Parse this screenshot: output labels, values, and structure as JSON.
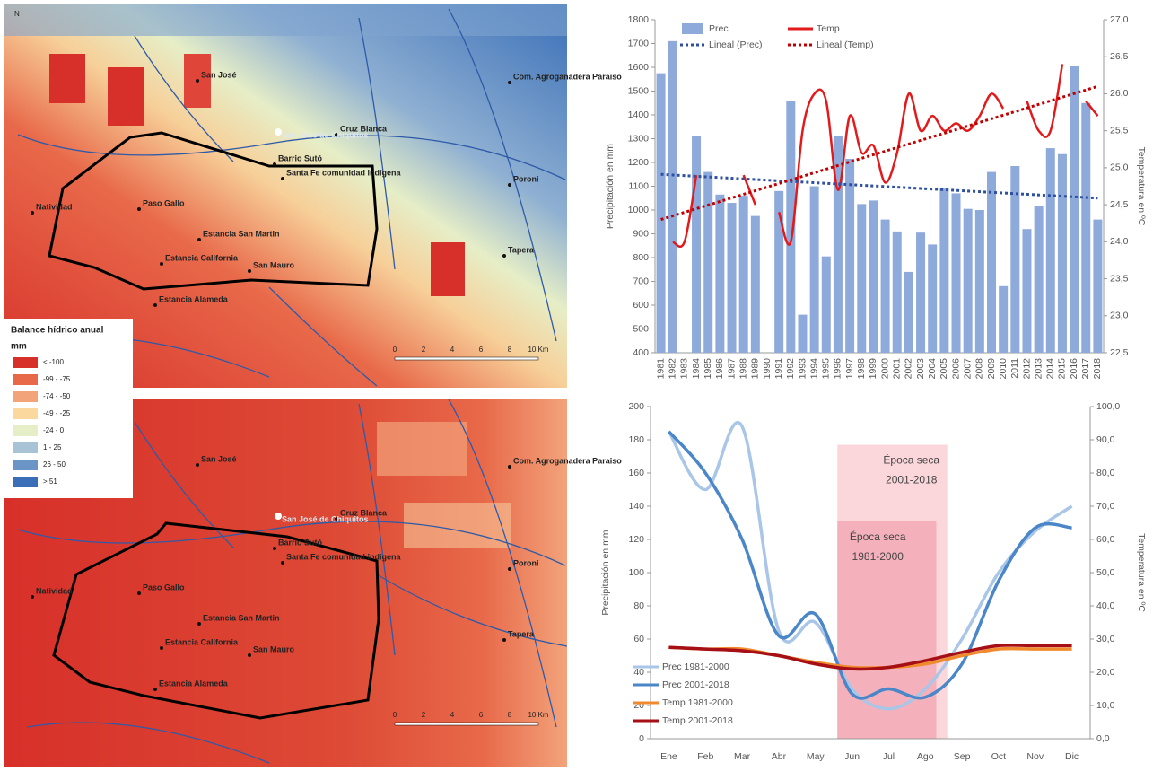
{
  "maps": {
    "legend": {
      "title": "Balance hídrico anual",
      "unit": "mm",
      "items": [
        {
          "label": "< -100",
          "color": "#d7302a"
        },
        {
          "label": "-99 - -75",
          "color": "#e8694a"
        },
        {
          "label": "-74 - -50",
          "color": "#f2a37a"
        },
        {
          "label": "-49 - -25",
          "color": "#fbd99e"
        },
        {
          "label": "-24 - 0",
          "color": "#e6eec7"
        },
        {
          "label": "1 - 25",
          "color": "#a9c3d6"
        },
        {
          "label": "26 - 50",
          "color": "#6b95c7"
        },
        {
          "label": "> 51",
          "color": "#3a6fb8"
        }
      ]
    },
    "north": "N",
    "places": [
      "San José",
      "Com. Agroganadera Paraiso",
      "Cruz Blanca",
      "San José de Chiquitos",
      "Barrio Sutó",
      "Santa Fe comunidad indígena",
      "Poroni",
      "Natividad",
      "Paso Gallo",
      "Estancia San Martin",
      "Estancia California",
      "San Mauro",
      "Tapera",
      "Estancia Alameda"
    ],
    "scale": [
      "0",
      "2",
      "4",
      "6",
      "8",
      "10 Km"
    ]
  },
  "chart_data": [
    {
      "type": "combo",
      "categories": [
        "1981",
        "1982",
        "1983",
        "1984",
        "1985",
        "1986",
        "1987",
        "1988",
        "1989",
        "1990",
        "1991",
        "1992",
        "1993",
        "1994",
        "1995",
        "1996",
        "1997",
        "1998",
        "1999",
        "2000",
        "2001",
        "2002",
        "2003",
        "2004",
        "2005",
        "2006",
        "2007",
        "2008",
        "2009",
        "2010",
        "2011",
        "2012",
        "2013",
        "2014",
        "2015",
        "2016",
        "2017",
        "2018"
      ],
      "series": [
        {
          "name": "Prec",
          "type": "bar",
          "color": "#8eaadb",
          "values": [
            1575,
            1710,
            null,
            1310,
            1160,
            1065,
            1030,
            1060,
            975,
            null,
            1080,
            1460,
            560,
            1100,
            805,
            1310,
            1215,
            1025,
            1040,
            960,
            910,
            740,
            905,
            855,
            1090,
            1070,
            1005,
            1000,
            1160,
            680,
            1185,
            920,
            1015,
            1260,
            1235,
            1605,
            1450,
            960
          ]
        },
        {
          "name": "Temp",
          "type": "line",
          "color": "#e31a1c",
          "axis": "y2",
          "values": [
            null,
            24.0,
            24.0,
            24.9,
            null,
            null,
            null,
            24.9,
            24.5,
            null,
            24.4,
            24.0,
            25.5,
            26.0,
            25.9,
            24.7,
            25.7,
            25.2,
            25.3,
            24.8,
            25.2,
            26.0,
            25.5,
            25.7,
            25.5,
            25.6,
            25.5,
            25.7,
            26.0,
            25.8,
            null,
            25.9,
            25.5,
            25.5,
            26.4,
            null,
            25.9,
            25.7
          ]
        }
      ],
      "trends": [
        {
          "name": "Lineal (Prec)",
          "color": "#2f4f9f",
          "x": [
            "1981",
            "2018"
          ],
          "values": [
            1150,
            1050
          ]
        },
        {
          "name": "Lineal (Temp)",
          "color": "#c00000",
          "axis": "y2",
          "x": [
            "1981",
            "2018"
          ],
          "values": [
            24.3,
            26.1
          ]
        }
      ],
      "y_label": "Precipitación en mm",
      "y2_label": "Temperatura en ºC",
      "ylim": [
        400,
        1800
      ],
      "yticks": [
        400,
        500,
        600,
        700,
        800,
        900,
        1000,
        1100,
        1200,
        1300,
        1400,
        1500,
        1600,
        1700,
        1800
      ],
      "y2lim": [
        22.5,
        27
      ],
      "y2ticks": [
        {
          "value": 22.5,
          "label": "22,5"
        },
        {
          "value": 23,
          "label": "23,0"
        },
        {
          "value": 23.5,
          "label": "23,5"
        },
        {
          "value": 24,
          "label": "24,0"
        },
        {
          "value": 24.5,
          "label": "24,5"
        },
        {
          "value": 25,
          "label": "25,0"
        },
        {
          "value": 25.5,
          "label": "25,5"
        },
        {
          "value": 26,
          "label": "26,0"
        },
        {
          "value": 26.5,
          "label": "26,5"
        },
        {
          "value": 27,
          "label": "27,0"
        }
      ],
      "legend": "top"
    },
    {
      "type": "line",
      "categories": [
        "Ene",
        "Feb",
        "Mar",
        "Abr",
        "May",
        "Jun",
        "Jul",
        "Ago",
        "Sep",
        "Oct",
        "Nov",
        "Dic"
      ],
      "series": [
        {
          "name": "Prec 1981-2000",
          "color": "#a9c6e8",
          "values": [
            185,
            150,
            188,
            65,
            70,
            30,
            18,
            30,
            60,
            100,
            125,
            140
          ]
        },
        {
          "name": "Prec 2001-2018",
          "color": "#4a86c8",
          "values": [
            185,
            160,
            120,
            62,
            75,
            27,
            30,
            25,
            45,
            95,
            127,
            127
          ]
        },
        {
          "name": "Temp 1981-2000",
          "color": "#f08a2c",
          "axis": "y2",
          "values": [
            27.5,
            27,
            27,
            25,
            23,
            21.5,
            21.5,
            22.5,
            25,
            27,
            27,
            27
          ]
        },
        {
          "name": "Temp 2001-2018",
          "color": "#a50f15",
          "axis": "y2",
          "values": [
            27.5,
            27,
            26.5,
            25,
            22.5,
            21,
            21.5,
            23.5,
            26,
            28,
            28,
            28
          ]
        }
      ],
      "spans": [
        {
          "text": [
            "Época seca",
            "2001-2018"
          ],
          "x0": 4.6,
          "x1": 7.6,
          "y1": 177,
          "color": "#f9c9d0"
        },
        {
          "text": [
            "Época seca",
            "1981-2000"
          ],
          "x0": 4.6,
          "x1": 7.3,
          "y1": 131,
          "color": "#f2a4b0"
        }
      ],
      "y_label": "Precipitación en mm",
      "y2_label": "Temperatura en ºC",
      "ylim": [
        0,
        200
      ],
      "yticks": [
        0,
        20,
        40,
        60,
        80,
        100,
        120,
        140,
        160,
        180,
        200
      ],
      "y2lim": [
        0,
        100
      ],
      "y2ticks": [
        {
          "value": 0,
          "label": "0,0"
        },
        {
          "value": 10,
          "label": "10,0"
        },
        {
          "value": 20,
          "label": "20,0"
        },
        {
          "value": 30,
          "label": "30,0"
        },
        {
          "value": 40,
          "label": "40,0"
        },
        {
          "value": 50,
          "label": "50,0"
        },
        {
          "value": 60,
          "label": "60,0"
        },
        {
          "value": 70,
          "label": "70,0"
        },
        {
          "value": 80,
          "label": "80,0"
        },
        {
          "value": 90,
          "label": "90,0"
        },
        {
          "value": 100,
          "label": "100,0"
        }
      ],
      "legend": "lower left"
    }
  ]
}
